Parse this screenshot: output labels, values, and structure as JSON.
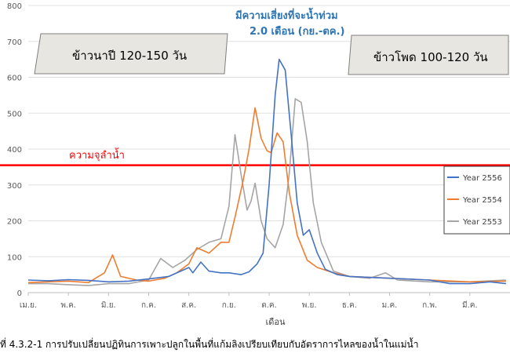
{
  "chart_data": {
    "type": "line",
    "title": "",
    "xlabel": "เดือน",
    "ylabel": "",
    "ylim": [
      0,
      800
    ],
    "yticks": [
      0,
      100,
      200,
      300,
      400,
      500,
      600,
      700,
      800
    ],
    "x_tick_labels": [
      "เม.ย.",
      "พ.ค.",
      "มิ.ย.",
      "ก.ค.",
      "ส.ค.",
      "ก.ย.",
      "ต.ค.",
      "พ.ย.",
      "ธ.ค.",
      "ม.ค.",
      "ก.พ.",
      "มี.ค."
    ],
    "x_unit": "month index (0 = start of เม.ย.)",
    "reference_line": {
      "value": 355,
      "label": "ความจุลำน้ำ",
      "color": "#ff0000"
    },
    "annotations": {
      "rice_in_season": "ข้าวนาปี 120-150 วัน",
      "corn": "ข้าวโพด 100-120 วัน",
      "flood_risk_line1": "มีความเสี่ยงที่จะน้ำท่วม",
      "flood_risk_line2": "2.0 เดือน (กย.-ตค.)"
    },
    "legend_position": "right",
    "series": [
      {
        "name": "Year 2556",
        "color": "#4472c4",
        "points": [
          [
            0.0,
            35
          ],
          [
            0.5,
            33
          ],
          [
            1.0,
            36
          ],
          [
            1.5,
            34
          ],
          [
            2.0,
            30
          ],
          [
            2.5,
            32
          ],
          [
            3.0,
            38
          ],
          [
            3.5,
            45
          ],
          [
            3.8,
            60
          ],
          [
            4.0,
            70
          ],
          [
            4.1,
            55
          ],
          [
            4.3,
            85
          ],
          [
            4.5,
            60
          ],
          [
            4.8,
            55
          ],
          [
            5.0,
            55
          ],
          [
            5.3,
            50
          ],
          [
            5.5,
            58
          ],
          [
            5.7,
            80
          ],
          [
            5.85,
            110
          ],
          [
            6.0,
            300
          ],
          [
            6.15,
            550
          ],
          [
            6.25,
            650
          ],
          [
            6.4,
            620
          ],
          [
            6.55,
            440
          ],
          [
            6.7,
            250
          ],
          [
            6.85,
            160
          ],
          [
            7.0,
            175
          ],
          [
            7.2,
            110
          ],
          [
            7.4,
            65
          ],
          [
            7.7,
            50
          ],
          [
            8.0,
            45
          ],
          [
            9.0,
            40
          ],
          [
            10.0,
            35
          ],
          [
            10.5,
            25
          ],
          [
            11.0,
            25
          ],
          [
            11.5,
            30
          ],
          [
            11.9,
            25
          ]
        ]
      },
      {
        "name": "Year 2554",
        "color": "#ed7d31",
        "points": [
          [
            0.0,
            28
          ],
          [
            0.5,
            30
          ],
          [
            1.0,
            32
          ],
          [
            1.5,
            28
          ],
          [
            1.9,
            55
          ],
          [
            2.1,
            105
          ],
          [
            2.3,
            45
          ],
          [
            2.7,
            35
          ],
          [
            3.0,
            32
          ],
          [
            3.4,
            40
          ],
          [
            3.7,
            55
          ],
          [
            4.0,
            80
          ],
          [
            4.2,
            125
          ],
          [
            4.5,
            110
          ],
          [
            4.8,
            140
          ],
          [
            5.0,
            140
          ],
          [
            5.15,
            210
          ],
          [
            5.35,
            310
          ],
          [
            5.5,
            400
          ],
          [
            5.65,
            515
          ],
          [
            5.8,
            430
          ],
          [
            5.95,
            395
          ],
          [
            6.05,
            390
          ],
          [
            6.2,
            445
          ],
          [
            6.35,
            420
          ],
          [
            6.5,
            280
          ],
          [
            6.7,
            160
          ],
          [
            6.95,
            90
          ],
          [
            7.2,
            70
          ],
          [
            7.6,
            55
          ],
          [
            8.0,
            45
          ],
          [
            9.0,
            40
          ],
          [
            10.0,
            35
          ],
          [
            11.0,
            30
          ],
          [
            11.9,
            32
          ]
        ]
      },
      {
        "name": "Year 2553",
        "color": "#a5a5a5",
        "points": [
          [
            0.0,
            25
          ],
          [
            0.5,
            25
          ],
          [
            1.0,
            22
          ],
          [
            1.5,
            20
          ],
          [
            2.0,
            25
          ],
          [
            2.5,
            25
          ],
          [
            3.0,
            35
          ],
          [
            3.3,
            95
          ],
          [
            3.6,
            70
          ],
          [
            3.9,
            90
          ],
          [
            4.2,
            120
          ],
          [
            4.5,
            140
          ],
          [
            4.8,
            150
          ],
          [
            5.0,
            240
          ],
          [
            5.15,
            440
          ],
          [
            5.3,
            330
          ],
          [
            5.45,
            230
          ],
          [
            5.55,
            255
          ],
          [
            5.65,
            305
          ],
          [
            5.8,
            200
          ],
          [
            5.95,
            150
          ],
          [
            6.15,
            125
          ],
          [
            6.35,
            190
          ],
          [
            6.5,
            330
          ],
          [
            6.65,
            540
          ],
          [
            6.8,
            530
          ],
          [
            6.95,
            420
          ],
          [
            7.1,
            250
          ],
          [
            7.3,
            140
          ],
          [
            7.6,
            60
          ],
          [
            8.0,
            45
          ],
          [
            8.5,
            40
          ],
          [
            8.9,
            55
          ],
          [
            9.2,
            35
          ],
          [
            10.0,
            30
          ],
          [
            11.0,
            30
          ],
          [
            11.9,
            35
          ]
        ]
      }
    ]
  },
  "caption": "ที่ 4.3.2-1  การปรับเปลี่ยนปฏิทินการเพาะปลูกในพื้นที่แก้มลิงเปรียบเทียบกับอัตราการไหลของน้ำในแม่น้ำ"
}
